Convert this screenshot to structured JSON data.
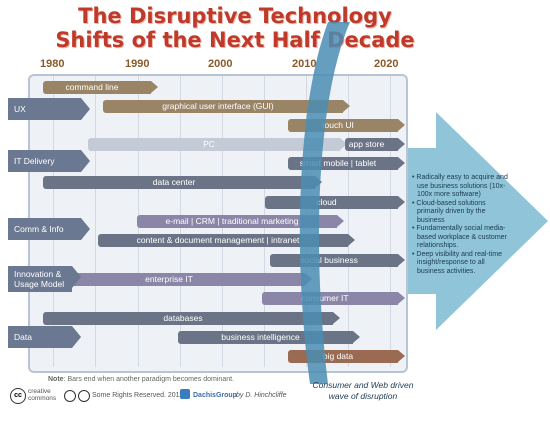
{
  "title_line1": "The Disruptive Technology",
  "title_line2": "Shifts of the Next Half Decade",
  "years": [
    "1980",
    "1990",
    "2000",
    "2010",
    "2020"
  ],
  "categories": [
    "UX",
    "IT Delivery",
    "Comm & Info",
    "Innovation & Usage Model",
    "Data"
  ],
  "bars": [
    "command line",
    "graphical user interface (GUI)",
    "touch UI",
    "PC",
    "app store",
    "smart mobile | tablet",
    "data center",
    "cloud",
    "e-mail | CRM | traditional marketing",
    "content & document management | intranet",
    "social business",
    "enterprise IT",
    "consumer IT",
    "databases",
    "business intelligence",
    "big data"
  ],
  "arrow_bullets": [
    "• Radically easy to acquire and use business solutions (10x-100x more software)",
    "• Cloud-based solutions primarily driven by the business",
    "• Fundamentally social media-based workplace & customer relationships.",
    "• Deep visibility and real-time insight/response to all business activities."
  ],
  "wave_caption_1": "Consumer and Web driven",
  "wave_caption_2": "wave of disruption",
  "note_label": "Note",
  "note_text": ": Bars end when another paradigm becomes dominant.",
  "cc_text": "creative commons",
  "rights_text": "Some Rights Reserved. 2011.",
  "group_text": "DachisGroup",
  "author_text": "by D. Hinchcliffe",
  "colors": {
    "title": "#c0392b",
    "bar_brown": "#9a8466",
    "bar_gray": "#6b7486",
    "bar_purple": "#8b86a8",
    "arrow": "#8fc4d9",
    "wave": "#4a8db3"
  }
}
